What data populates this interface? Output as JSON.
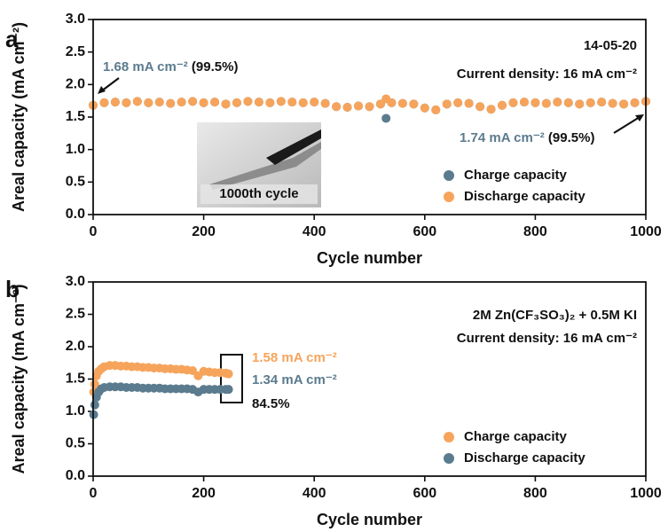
{
  "chart_data": [
    {
      "type": "scatter",
      "panel_label": "a",
      "xlabel": "Cycle number",
      "ylabel": "Areal capacity (mA cm⁻²)",
      "xlim": [
        0,
        1000
      ],
      "xticks": [
        0,
        200,
        400,
        600,
        800,
        1000
      ],
      "ylim": [
        0,
        3
      ],
      "yticks": [
        {
          "value": 0,
          "label": "0.0"
        },
        0.5,
        {
          "value": 1,
          "label": "1.0"
        },
        1.5,
        {
          "value": 2,
          "label": "2.0"
        },
        2.5,
        {
          "value": 3,
          "label": "3.0"
        }
      ],
      "legend": "lower right",
      "annotations": [
        "14-05-20",
        "Current density: 16 mA cm⁻²",
        "1.68 mA cm⁻²",
        "(99.5%)",
        "1.74 mA cm⁻²",
        "(99.5%)",
        "1000th cycle"
      ],
      "x": [
        0,
        20,
        40,
        60,
        80,
        100,
        120,
        140,
        160,
        180,
        200,
        220,
        240,
        260,
        280,
        300,
        320,
        340,
        360,
        380,
        400,
        420,
        440,
        460,
        480,
        500,
        520,
        530,
        540,
        560,
        580,
        600,
        620,
        640,
        660,
        680,
        700,
        720,
        740,
        760,
        780,
        800,
        820,
        840,
        860,
        880,
        900,
        920,
        940,
        960,
        980,
        1000
      ],
      "series": [
        {
          "name": "Charge capacity",
          "color": "#5b7b8e",
          "values": [
            1.68,
            1.72,
            1.73,
            1.72,
            1.74,
            1.72,
            1.73,
            1.71,
            1.73,
            1.74,
            1.72,
            1.73,
            1.7,
            1.72,
            1.74,
            1.73,
            1.72,
            1.74,
            1.73,
            1.72,
            1.73,
            1.71,
            1.66,
            1.65,
            1.67,
            1.66,
            1.7,
            1.48,
            1.72,
            1.71,
            1.7,
            1.64,
            1.61,
            1.7,
            1.72,
            1.71,
            1.66,
            1.62,
            1.68,
            1.72,
            1.73,
            1.72,
            1.71,
            1.73,
            1.72,
            1.7,
            1.72,
            1.73,
            1.71,
            1.7,
            1.72,
            1.74
          ]
        },
        {
          "name": "Discharge capacity",
          "color": "#f6a45c",
          "values": [
            1.68,
            1.72,
            1.73,
            1.72,
            1.74,
            1.72,
            1.73,
            1.71,
            1.73,
            1.74,
            1.72,
            1.73,
            1.7,
            1.72,
            1.74,
            1.73,
            1.72,
            1.74,
            1.73,
            1.72,
            1.73,
            1.71,
            1.66,
            1.65,
            1.67,
            1.66,
            1.7,
            1.78,
            1.72,
            1.71,
            1.7,
            1.64,
            1.61,
            1.7,
            1.72,
            1.71,
            1.66,
            1.62,
            1.68,
            1.72,
            1.73,
            1.72,
            1.71,
            1.73,
            1.72,
            1.7,
            1.72,
            1.73,
            1.71,
            1.7,
            1.72,
            1.74
          ]
        }
      ]
    },
    {
      "type": "scatter",
      "panel_label": "b",
      "xlabel": "Cycle number",
      "ylabel": "Areal capacity (mA cm⁻²)",
      "xlim": [
        0,
        1000
      ],
      "xticks": [
        0,
        200,
        400,
        600,
        800,
        1000
      ],
      "ylim": [
        0,
        3
      ],
      "yticks": [
        {
          "value": 0,
          "label": "0.0"
        },
        0.5,
        {
          "value": 1,
          "label": "1.0"
        },
        1.5,
        {
          "value": 2,
          "label": "2.0"
        },
        2.5,
        {
          "value": 3,
          "label": "3.0"
        }
      ],
      "legend": "lower right",
      "annotations": [
        "2M Zn(CF₃SO₃)₂ + 0.5M KI",
        "Current density: 16 mA cm⁻²",
        "1.58 mA cm⁻²",
        "1.34 mA cm⁻²",
        "84.5%"
      ],
      "x": [
        1,
        3,
        6,
        10,
        15,
        20,
        30,
        40,
        50,
        60,
        70,
        80,
        90,
        100,
        110,
        120,
        130,
        140,
        150,
        160,
        170,
        180,
        190,
        200,
        210,
        220,
        230,
        240,
        245
      ],
      "series": [
        {
          "name": "Charge capacity",
          "color": "#f6a45c",
          "values": [
            1.3,
            1.42,
            1.55,
            1.62,
            1.66,
            1.69,
            1.71,
            1.71,
            1.7,
            1.7,
            1.69,
            1.69,
            1.68,
            1.68,
            1.67,
            1.67,
            1.66,
            1.66,
            1.65,
            1.65,
            1.64,
            1.63,
            1.55,
            1.62,
            1.61,
            1.6,
            1.6,
            1.59,
            1.58
          ]
        },
        {
          "name": "Discharge capacity",
          "color": "#5b7b8e",
          "values": [
            0.95,
            1.1,
            1.22,
            1.3,
            1.35,
            1.37,
            1.38,
            1.38,
            1.38,
            1.37,
            1.37,
            1.37,
            1.36,
            1.36,
            1.36,
            1.36,
            1.35,
            1.35,
            1.35,
            1.35,
            1.35,
            1.34,
            1.3,
            1.34,
            1.34,
            1.34,
            1.34,
            1.34,
            1.34
          ]
        }
      ]
    }
  ]
}
